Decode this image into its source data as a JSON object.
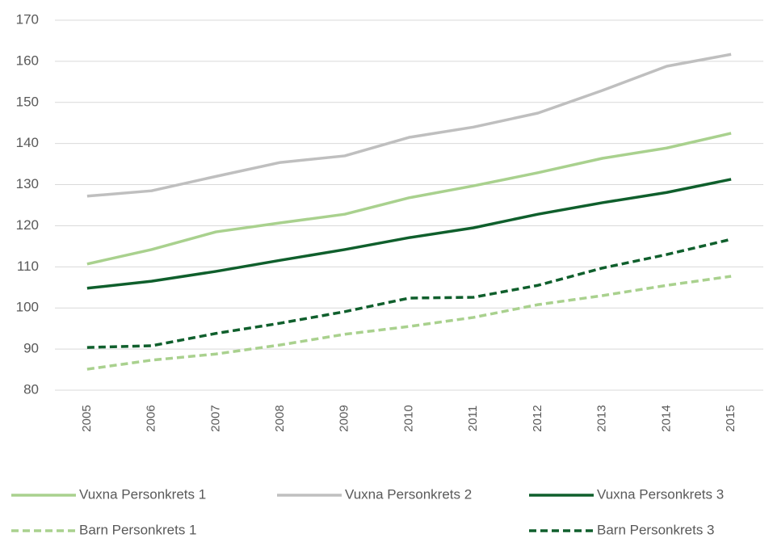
{
  "chart_data": {
    "type": "line",
    "categories": [
      "2005",
      "2006",
      "2007",
      "2008",
      "2009",
      "2010",
      "2011",
      "2012",
      "2013",
      "2014",
      "2015"
    ],
    "series": [
      {
        "name": "Vuxna Personkrets 1",
        "color": "#a9d18e",
        "dashed": false,
        "values": [
          110.7,
          114.2,
          118.5,
          120.7,
          122.8,
          126.8,
          129.7,
          132.9,
          136.4,
          138.9,
          142.5
        ]
      },
      {
        "name": "Vuxna Personkrets 2",
        "color": "#bfbfbf",
        "dashed": false,
        "values": [
          127.2,
          128.5,
          132,
          135.4,
          137,
          141.5,
          144,
          147.4,
          152.9,
          158.8,
          161.7
        ]
      },
      {
        "name": "Vuxna Personkrets 3",
        "color": "#0f5f2c",
        "dashed": false,
        "values": [
          104.8,
          106.5,
          108.9,
          111.6,
          114.2,
          117.1,
          119.5,
          122.8,
          125.6,
          128.1,
          131.3
        ]
      },
      {
        "name": "Barn Personkrets 1",
        "color": "#a9d18e",
        "dashed": true,
        "values": [
          85.1,
          87.3,
          88.8,
          91,
          93.6,
          95.5,
          97.7,
          100.8,
          103,
          105.5,
          107.7
        ]
      },
      {
        "name": "Barn Personkrets 3",
        "color": "#0f5f2c",
        "dashed": true,
        "values": [
          90.4,
          90.8,
          93.8,
          96.3,
          99.1,
          102.4,
          102.6,
          105.5,
          109.7,
          113,
          116.7
        ]
      }
    ],
    "ylim": [
      80,
      170
    ],
    "yticks": [
      80,
      90,
      100,
      110,
      120,
      130,
      140,
      150,
      160,
      170
    ],
    "grid": true
  }
}
